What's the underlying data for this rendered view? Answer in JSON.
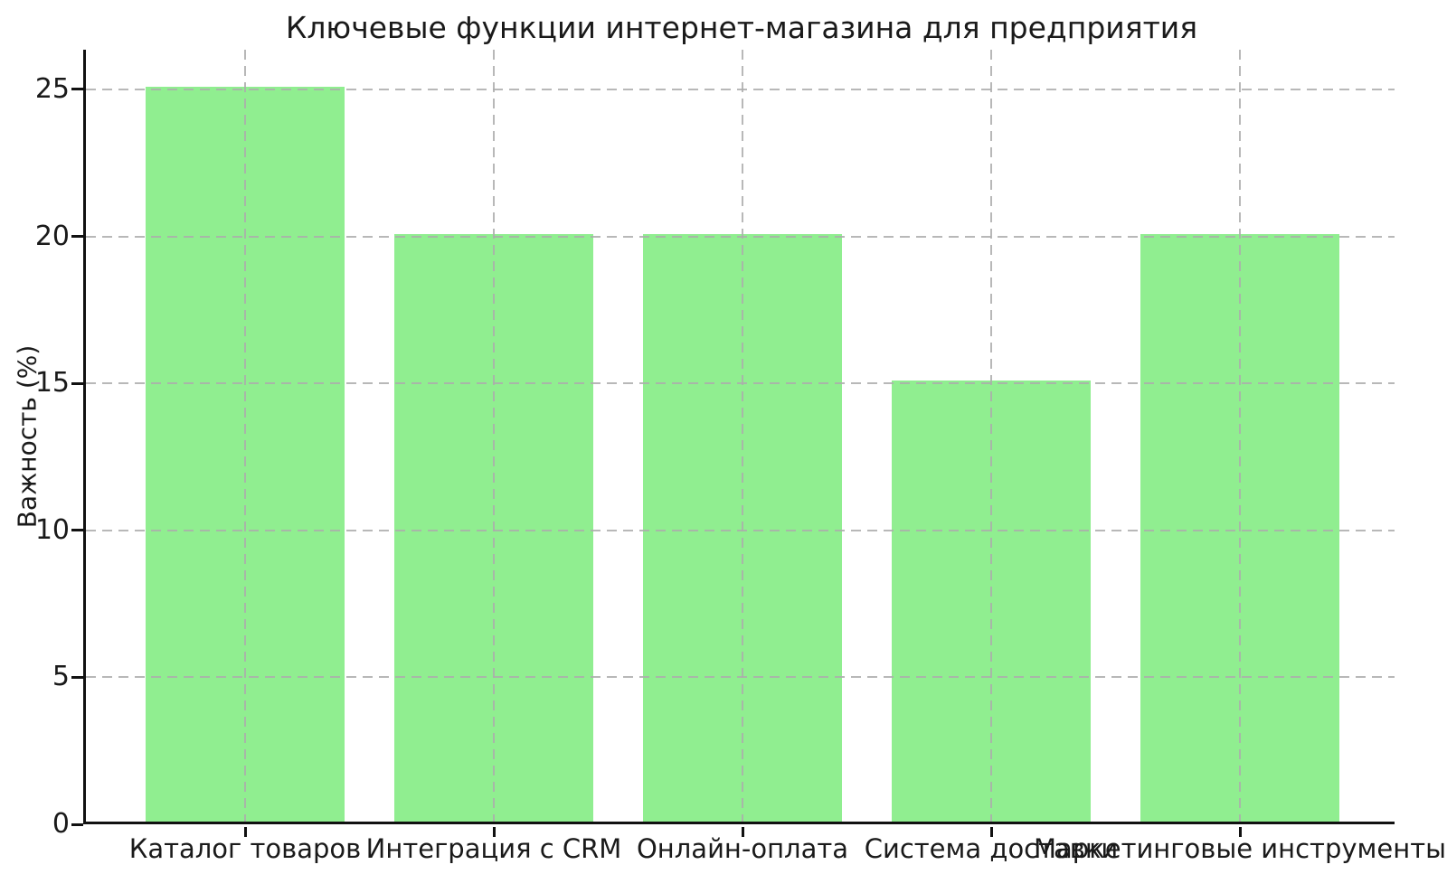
{
  "chart_data": {
    "type": "bar",
    "title": "Ключевые функции интернет-магазина для предприятия",
    "ylabel": "Важность (%)",
    "xlabel": "",
    "categories": [
      "Каталог товаров",
      "Интеграция с CRM",
      "Онлайн-оплата",
      "Система доставки",
      "Маркетинговые инструменты"
    ],
    "values": [
      25,
      20,
      20,
      15,
      20
    ],
    "yticks": [
      0,
      5,
      10,
      15,
      20,
      25
    ],
    "ylim": [
      0,
      26.35
    ],
    "bar_color": "#90EE90",
    "grid": "on",
    "grid_style": "dashed",
    "grid_color": "#b0b0b0",
    "grid_over_bars": true,
    "legend": "none",
    "background_color": "#ffffff",
    "axis_color": "#111111",
    "note_label_overlap": "4th and 5th x-axis labels overlap visually"
  }
}
